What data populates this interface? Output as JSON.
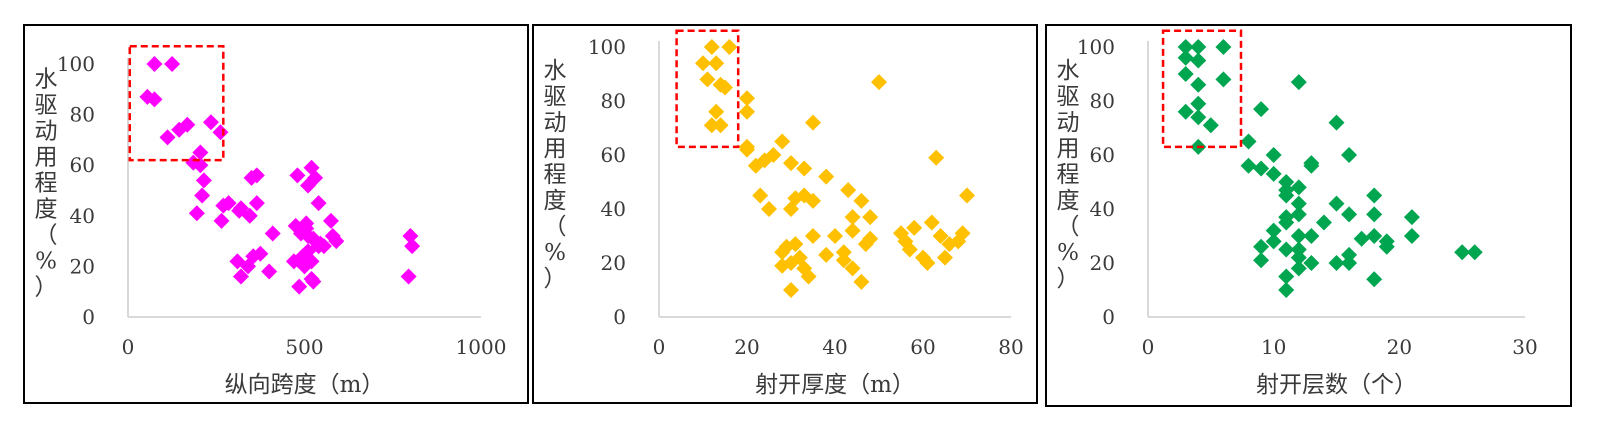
{
  "chart_data": [
    {
      "type": "scatter",
      "xlabel": "纵向跨度（m）",
      "ylabel": "水驱动用程度（%）",
      "xlim": [
        0,
        1000
      ],
      "ylim": [
        0,
        100
      ],
      "x_ticks": [
        0,
        500,
        1000
      ],
      "y_ticks": [
        0,
        20,
        40,
        60,
        80,
        100
      ],
      "color": "#ff00ff",
      "marker": "diamond",
      "highlight_box": {
        "x": [
          5,
          270
        ],
        "y": [
          62,
          107
        ],
        "color": "#ff0000"
      },
      "series": [
        {
          "x": [
            75,
            125,
            55,
            75,
            112,
            145,
            168,
            205,
            235,
            262,
            185,
            205,
            215,
            195,
            210,
            270,
            265,
            315,
            320,
            285,
            350,
            365,
            365,
            345,
            310,
            410,
            320,
            340,
            375,
            355,
            400,
            480,
            510,
            530,
            520,
            540,
            575,
            505,
            475,
            505,
            490,
            510,
            525,
            530,
            545,
            555,
            510,
            495,
            470,
            500,
            520,
            540,
            520,
            580,
            590,
            485,
            525,
            800,
            805,
            795
          ],
          "y": [
            100,
            100,
            87,
            86,
            71,
            74,
            76,
            65,
            77,
            73,
            61,
            60,
            54,
            41,
            48,
            44,
            38,
            42,
            43,
            45,
            55,
            56,
            45,
            40,
            22,
            33,
            16,
            20,
            25,
            24,
            18,
            56,
            52,
            55,
            59,
            45,
            38,
            37,
            36,
            35,
            33,
            32,
            31,
            30,
            29,
            28,
            26,
            24,
            22,
            20,
            22,
            28,
            15,
            32,
            30,
            12,
            14,
            32,
            28,
            16
          ]
        }
      ]
    },
    {
      "type": "scatter",
      "xlabel": "射开厚度（m）",
      "ylabel": "水驱动用程度（%）",
      "xlim": [
        0,
        80
      ],
      "ylim": [
        0,
        100
      ],
      "x_ticks": [
        0,
        20,
        40,
        60,
        80
      ],
      "y_ticks": [
        0,
        20,
        40,
        60,
        80,
        100
      ],
      "color": "#ffc000",
      "marker": "diamond",
      "highlight_box": {
        "x": [
          4,
          18
        ],
        "y": [
          63,
          106
        ],
        "color": "#ff0000"
      },
      "series": [
        {
          "x": [
            12,
            16,
            13,
            10,
            11,
            14,
            15,
            13,
            12,
            14,
            20,
            20,
            20,
            23,
            25,
            24,
            20,
            22,
            26,
            28,
            30,
            33,
            31,
            33,
            30,
            35,
            35,
            38,
            44,
            44,
            44,
            48,
            40,
            42,
            42,
            28,
            30,
            32,
            33,
            34,
            30,
            28,
            29,
            31,
            35,
            38,
            46,
            43,
            44,
            47,
            48,
            55,
            57,
            58,
            60,
            61,
            62,
            64,
            66,
            65,
            68,
            69,
            70,
            50,
            56,
            46,
            63
          ],
          "y": [
            100,
            100,
            94,
            94,
            88,
            86,
            85,
            76,
            71,
            71,
            81,
            76,
            62,
            45,
            40,
            58,
            63,
            56,
            60,
            65,
            57,
            55,
            44,
            45,
            40,
            43,
            72,
            52,
            37,
            32,
            18,
            29,
            30,
            21,
            24,
            24,
            20,
            22,
            18,
            15,
            10,
            19,
            26,
            27,
            30,
            23,
            43,
            47,
            32,
            27,
            37,
            31,
            25,
            33,
            22,
            20,
            35,
            30,
            27,
            22,
            28,
            31,
            45,
            87,
            28,
            13,
            59
          ]
        }
      ]
    },
    {
      "type": "scatter",
      "xlabel": "射开层数（个）",
      "ylabel": "水驱动用程度（%）",
      "xlim": [
        0,
        30
      ],
      "ylim": [
        0,
        100
      ],
      "x_ticks": [
        0,
        10,
        20,
        30
      ],
      "y_ticks": [
        0,
        20,
        40,
        60,
        80,
        100
      ],
      "color": "#00a550",
      "marker": "diamond",
      "highlight_box": {
        "x": [
          1.2,
          7.4
        ],
        "y": [
          63,
          106
        ],
        "color": "#ff0000"
      },
      "series": [
        {
          "x": [
            3,
            4,
            6,
            3,
            4,
            3,
            4,
            6,
            4,
            3,
            4,
            5,
            4,
            8,
            9,
            10,
            12,
            11,
            12,
            11,
            15,
            16,
            15,
            16,
            8,
            9,
            10,
            11,
            12,
            13,
            13,
            12,
            14,
            11,
            10,
            12,
            13,
            10,
            11,
            12,
            13,
            12,
            11,
            11,
            11,
            9,
            9,
            12,
            15,
            16,
            18,
            18,
            19,
            21,
            21,
            17,
            18,
            19,
            18,
            25,
            26,
            16
          ],
          "y": [
            100,
            100,
            100,
            96,
            95,
            90,
            86,
            88,
            79,
            76,
            74,
            71,
            63,
            65,
            77,
            60,
            87,
            50,
            48,
            45,
            72,
            60,
            42,
            38,
            56,
            55,
            53,
            47,
            42,
            57,
            56,
            38,
            35,
            35,
            32,
            30,
            30,
            28,
            25,
            22,
            20,
            18,
            15,
            10,
            37,
            26,
            21,
            25,
            20,
            23,
            45,
            38,
            28,
            37,
            30,
            29,
            30,
            26,
            14,
            24,
            24,
            20
          ]
        }
      ]
    }
  ]
}
